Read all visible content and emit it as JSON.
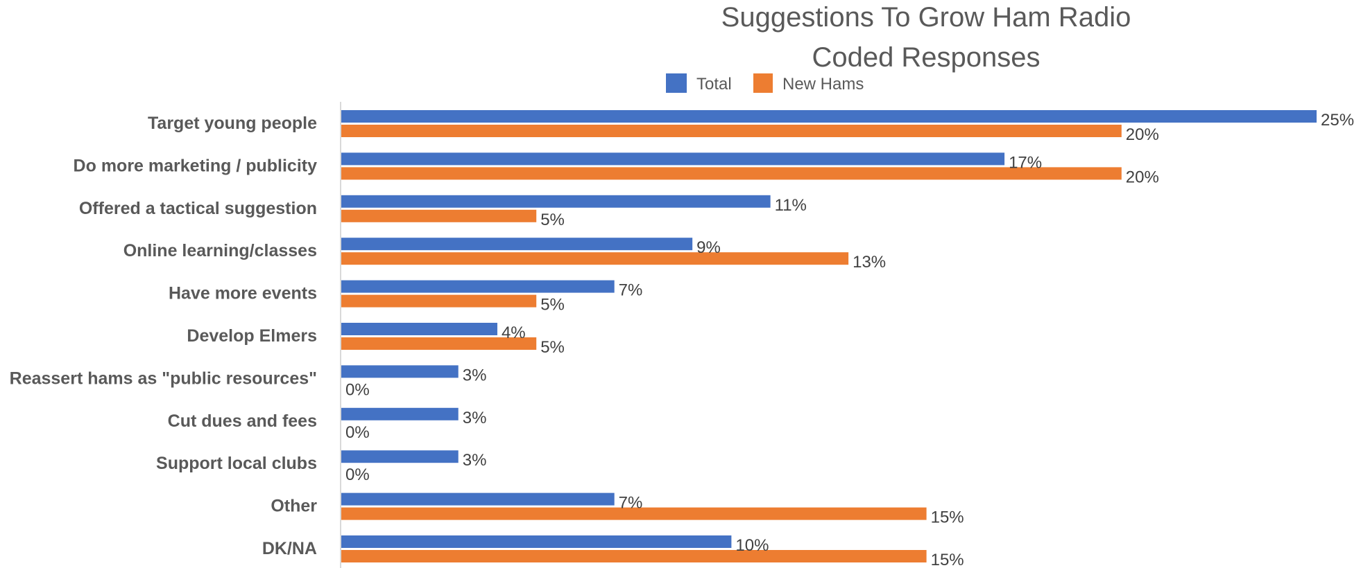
{
  "chart_data": {
    "type": "bar",
    "orientation": "horizontal",
    "title": "Suggestions To Grow Ham Radio",
    "subtitle": "Coded Responses",
    "legend_position": "top",
    "grid": false,
    "value_format": "percent",
    "xlim": [
      0,
      25
    ],
    "categories": [
      "Target young people",
      "Do more marketing / publicity",
      "Offered a tactical suggestion",
      "Online learning/classes",
      "Have more events",
      "Develop Elmers",
      "Reassert hams as \"public resources\"",
      "Cut dues and fees",
      "Support local clubs",
      "Other",
      "DK/NA"
    ],
    "series": [
      {
        "name": "Total",
        "color": "#4472C4",
        "values": [
          25,
          17,
          11,
          9,
          7,
          4,
          3,
          3,
          3,
          7,
          10
        ]
      },
      {
        "name": "New Hams",
        "color": "#ED7D31",
        "values": [
          20,
          20,
          5,
          13,
          5,
          5,
          0,
          0,
          0,
          15,
          15
        ]
      }
    ]
  }
}
